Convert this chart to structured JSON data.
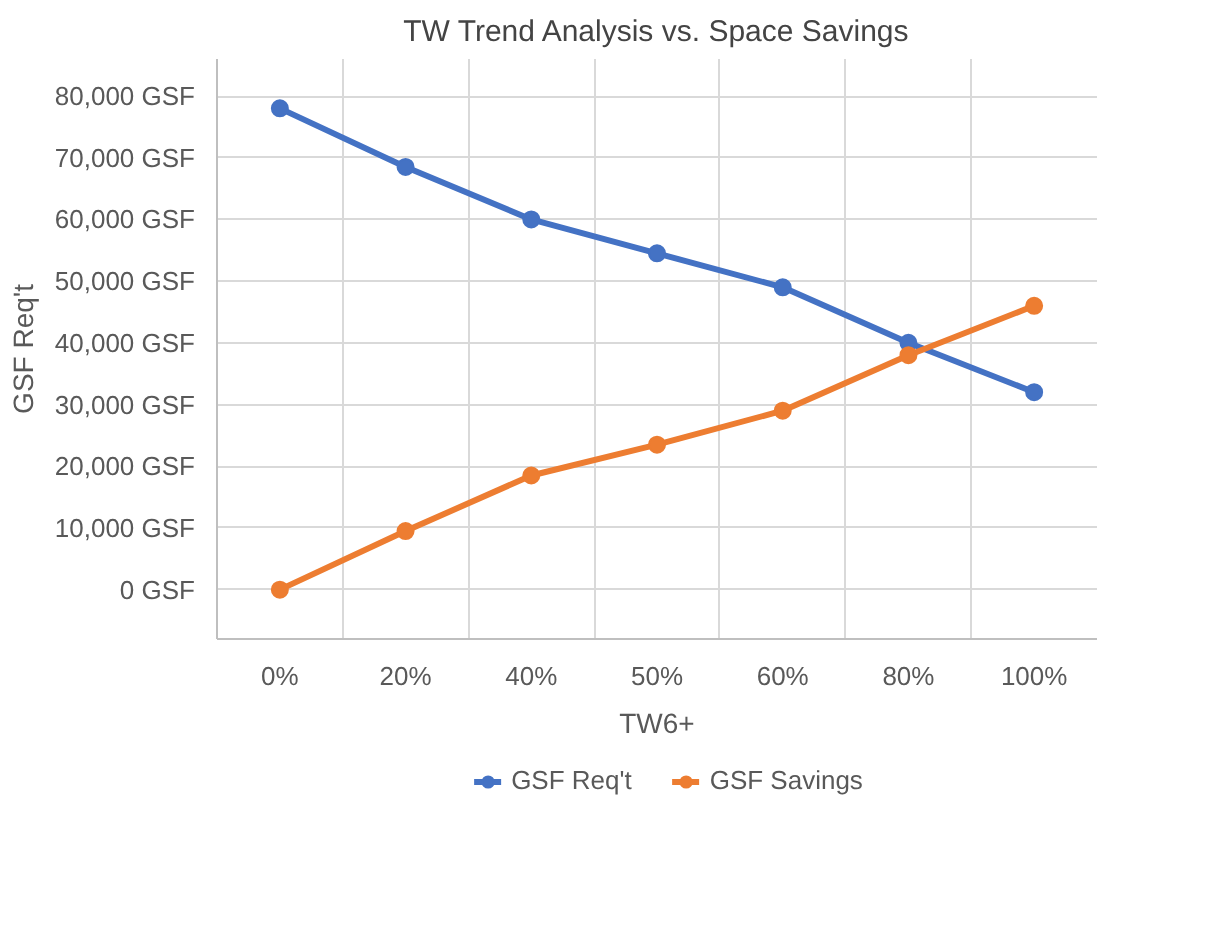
{
  "chart_data": {
    "type": "line",
    "title": "TW Trend Analysis vs. Space Savings",
    "xlabel": "TW6+",
    "ylabel": "GSF Req't",
    "categories": [
      "0%",
      "20%",
      "40%",
      "50%",
      "60%",
      "80%",
      "100%"
    ],
    "series": [
      {
        "name": "GSF Req't",
        "color": "#4472c4",
        "values": [
          78000,
          68500,
          60000,
          54500,
          49000,
          40000,
          32000
        ]
      },
      {
        "name": "GSF Savings",
        "color": "#ed7d31",
        "values": [
          0,
          9500,
          18500,
          23500,
          29000,
          38000,
          46000
        ]
      }
    ],
    "ylim": [
      -8000,
      86000
    ],
    "yticks": [
      {
        "value": 0,
        "label": "0 GSF"
      },
      {
        "value": 10000,
        "label": "10,000 GSF"
      },
      {
        "value": 20000,
        "label": "20,000 GSF"
      },
      {
        "value": 30000,
        "label": "30,000 GSF"
      },
      {
        "value": 40000,
        "label": "40,000 GSF"
      },
      {
        "value": 50000,
        "label": "50,000 GSF"
      },
      {
        "value": 60000,
        "label": "60,000 GSF"
      },
      {
        "value": 70000,
        "label": "70,000 GSF"
      },
      {
        "value": 80000,
        "label": "80,000 GSF"
      }
    ],
    "grid": true,
    "legend": "bottom",
    "marker": "circle",
    "line_style": "solid"
  }
}
